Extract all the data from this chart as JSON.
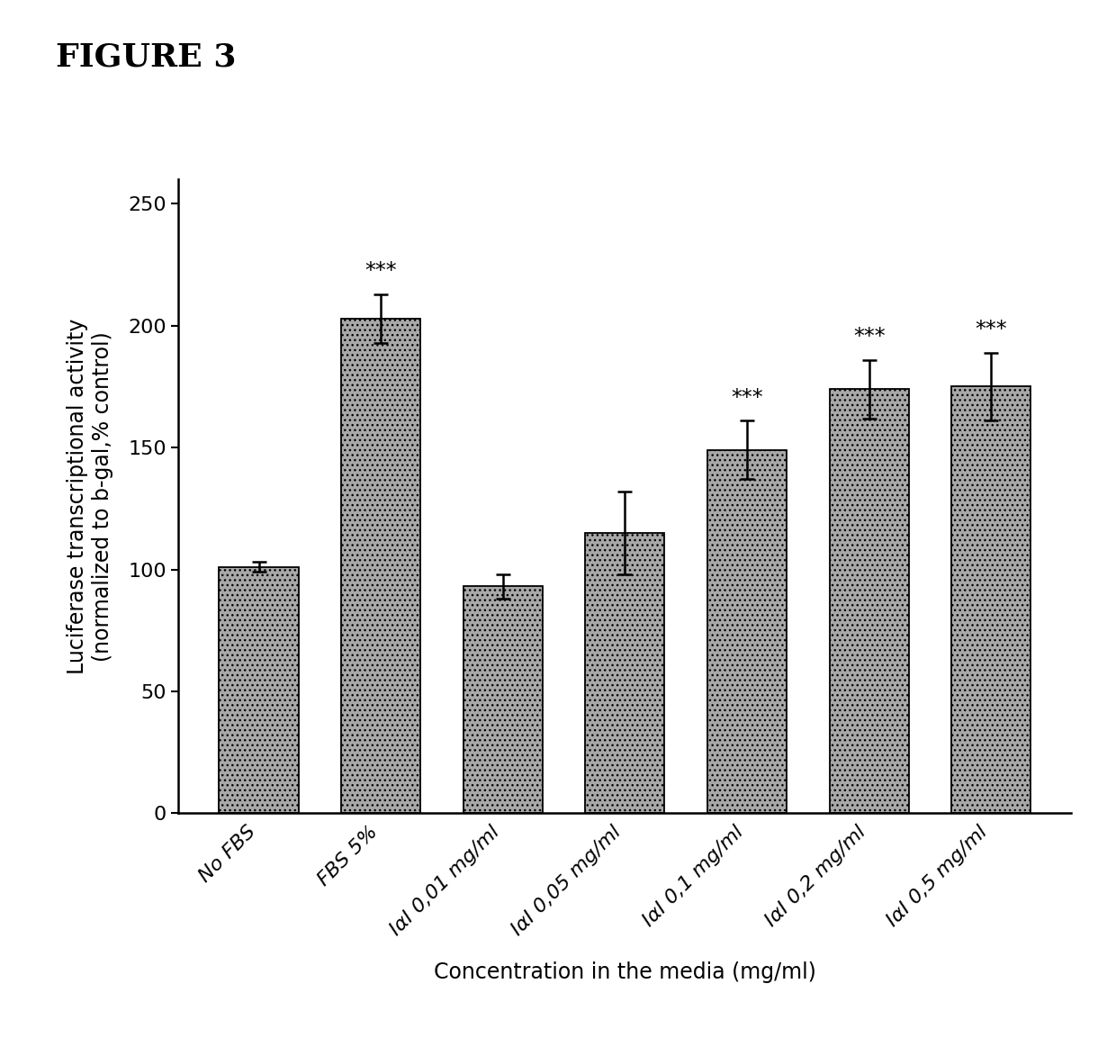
{
  "categories": [
    "No FBS",
    "FBS 5%",
    "IαI 0,01 mg/ml",
    "IαI 0,05 mg/ml",
    "IαI 0,1 mg/ml",
    "IαI 0,2 mg/ml",
    "IαI 0,5 mg/ml"
  ],
  "values": [
    101,
    203,
    93,
    115,
    149,
    174,
    175
  ],
  "errors": [
    2,
    10,
    5,
    17,
    12,
    12,
    14
  ],
  "significance": [
    null,
    "***",
    null,
    null,
    "***",
    "***",
    "***"
  ],
  "bar_color": "#a8a8a8",
  "bar_edge_color": "#000000",
  "bar_width": 0.65,
  "ylabel_line1": "Luciferase transcriptional activity",
  "ylabel_line2": "(normalized to b-gal,% control)",
  "xlabel": "Concentration in the media (mg/ml)",
  "title": "FIGURE 3",
  "ylim": [
    0,
    260
  ],
  "yticks": [
    0,
    50,
    100,
    150,
    200,
    250
  ],
  "title_fontsize": 26,
  "axis_label_fontsize": 17,
  "tick_fontsize": 16,
  "sig_fontsize": 17,
  "xlabel_fontsize": 17,
  "background_color": "#ffffff",
  "hatch": "..."
}
